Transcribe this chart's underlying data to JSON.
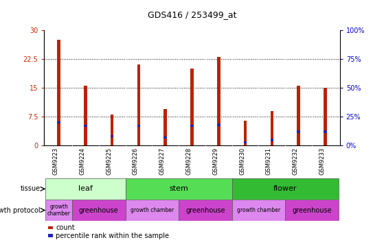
{
  "title": "GDS416 / 253499_at",
  "samples": [
    "GSM9223",
    "GSM9224",
    "GSM9225",
    "GSM9226",
    "GSM9227",
    "GSM9228",
    "GSM9229",
    "GSM9230",
    "GSM9231",
    "GSM9232",
    "GSM9233"
  ],
  "counts": [
    27.5,
    15.5,
    8.0,
    21.0,
    9.5,
    20.0,
    23.0,
    6.5,
    9.0,
    15.5,
    15.0
  ],
  "percentiles": [
    20,
    17,
    8,
    17,
    7,
    17,
    18,
    3,
    5,
    12,
    12
  ],
  "ylim_left": [
    0,
    30
  ],
  "ylim_right": [
    0,
    100
  ],
  "yticks_left": [
    0,
    7.5,
    15,
    22.5,
    30
  ],
  "yticks_right": [
    0,
    25,
    50,
    75,
    100
  ],
  "bar_color": "#bb2200",
  "pct_color": "#2222bb",
  "bar_width": 0.12,
  "pct_bar_height": 0.6,
  "tissue_groups": [
    {
      "label": "leaf",
      "start": 0,
      "end": 3,
      "color": "#ccffcc"
    },
    {
      "label": "stem",
      "start": 3,
      "end": 7,
      "color": "#55dd55"
    },
    {
      "label": "flower",
      "start": 7,
      "end": 11,
      "color": "#33bb33"
    }
  ],
  "protocol_groups": [
    {
      "label": "growth\nchamber",
      "start": 0,
      "end": 1,
      "color": "#dd88ee"
    },
    {
      "label": "greenhouse",
      "start": 1,
      "end": 3,
      "color": "#cc44cc"
    },
    {
      "label": "growth chamber",
      "start": 3,
      "end": 5,
      "color": "#dd88ee"
    },
    {
      "label": "greenhouse",
      "start": 5,
      "end": 7,
      "color": "#cc44cc"
    },
    {
      "label": "growth chamber",
      "start": 7,
      "end": 9,
      "color": "#dd88ee"
    },
    {
      "label": "greenhouse",
      "start": 9,
      "end": 11,
      "color": "#cc44cc"
    }
  ],
  "tissue_label": "tissue",
  "protocol_label": "growth protocol",
  "legend_count_label": "count",
  "legend_pct_label": "percentile rank within the sample",
  "bg_color": "#ffffff",
  "plot_bg": "#ffffff",
  "axis_color_left": "#cc2200",
  "axis_color_right": "#0000cc",
  "xticklabel_bg": "#cccccc",
  "tissue_sep_color": "#555555",
  "grid_style": "dotted"
}
